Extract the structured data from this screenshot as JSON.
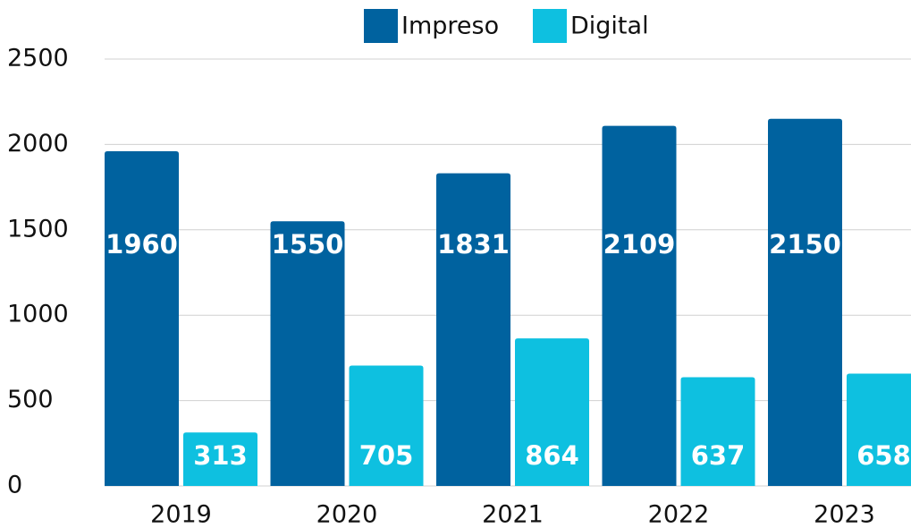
{
  "chart_data": {
    "type": "bar",
    "categories": [
      "2019",
      "2020",
      "2021",
      "2022",
      "2023"
    ],
    "series": [
      {
        "name": "Impreso",
        "color": "#00629f",
        "values": [
          1960,
          1550,
          1831,
          2109,
          2150
        ]
      },
      {
        "name": "Digital",
        "color": "#0ec0e0",
        "values": [
          313,
          705,
          864,
          637,
          658
        ]
      }
    ],
    "ylim": [
      0,
      2500
    ],
    "yticks": [
      0,
      500,
      1000,
      1500,
      2000,
      2500
    ],
    "grid": true,
    "legend": "top"
  }
}
